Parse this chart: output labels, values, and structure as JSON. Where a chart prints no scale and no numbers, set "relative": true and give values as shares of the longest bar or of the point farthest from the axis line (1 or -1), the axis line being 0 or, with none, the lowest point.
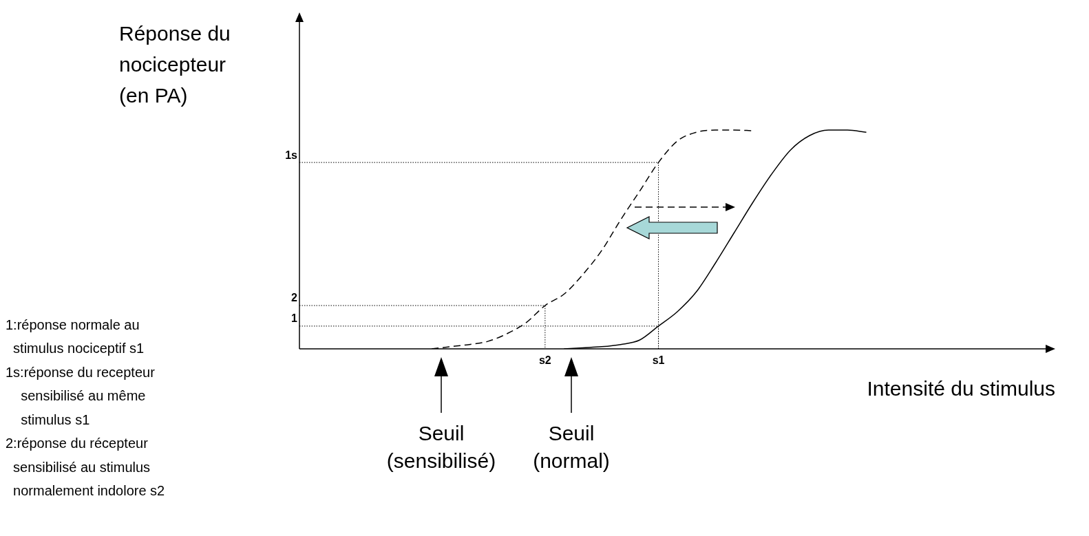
{
  "chart_data": {
    "type": "line",
    "relative": true,
    "xlabel": "Intensité du stimulus",
    "ylabel": "Réponse du\nnocicepteur\n(en PA)",
    "legend": false,
    "marker": "none",
    "categories": [
      null,
      null,
      null,
      null,
      null,
      null,
      null,
      null,
      null,
      null,
      null,
      null,
      null,
      "s2",
      null,
      null,
      null,
      null,
      null,
      "s1",
      null,
      null,
      null,
      null,
      null,
      null,
      null,
      null,
      null,
      null,
      null,
      null,
      null,
      null,
      null,
      null,
      null,
      null,
      null,
      null,
      null
    ],
    "series": [
      {
        "values": [
          null,
          null,
          null,
          null,
          null,
          null,
          null,
          0,
          0.01,
          0.02,
          0.035,
          0.07,
          0.12,
          0.198,
          0.25,
          0.34,
          0.45,
          0.59,
          0.72,
          0.852,
          0.95,
          0.99,
          1,
          1,
          0.997,
          null,
          null,
          null,
          null,
          null,
          null,
          null,
          null,
          null,
          null,
          null,
          null,
          null,
          null,
          null,
          null
        ],
        "color": "#000000",
        "line_style": "dashed"
      },
      {
        "values": [
          null,
          null,
          null,
          null,
          null,
          null,
          null,
          null,
          null,
          null,
          null,
          null,
          null,
          null,
          0,
          0.005,
          0.01,
          0.02,
          0.04,
          0.104,
          0.17,
          0.26,
          0.39,
          0.53,
          0.67,
          0.8,
          0.91,
          0.975,
          1,
          1,
          0.99,
          null,
          null,
          null,
          null,
          null,
          null,
          null,
          null,
          null,
          null
        ],
        "color": "#000000",
        "line_style": "solid"
      }
    ],
    "annotations": [
      "1",
      "2",
      "1s",
      "Seuil\n(sensibilisé)",
      "Seuil\n(normal)",
      "1:réponse normale au\n  stimulus nociceptif s1\n1s:réponse du recepteur\n    sensibilisé au même\n    stimulus s1\n2:réponse du récepteur\n  sensibilisé au stimulus\n  normalement indolore s2"
    ]
  }
}
